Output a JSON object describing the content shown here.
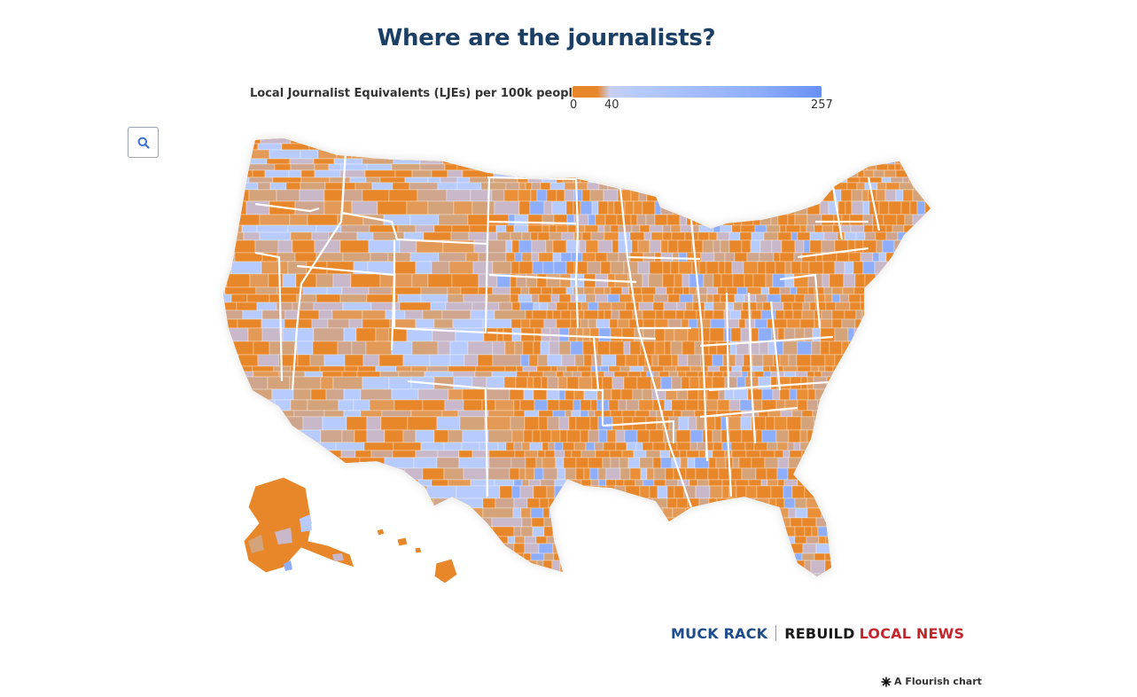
{
  "title": "Where are the journalists?",
  "legend": {
    "label": "Local Journalist Equivalents (LJEs) per 100k people",
    "ticks": [
      "0",
      "40",
      "257"
    ],
    "tick_values": [
      0,
      40,
      257
    ],
    "min": 0,
    "max": 257,
    "low_color": "#e8862a",
    "mid_color": "#b7cbff",
    "high_color": "#6890f4"
  },
  "search_button": {
    "icon": "search-icon"
  },
  "map": {
    "region": "United States counties",
    "border_color": "#ffffff",
    "base_color": "#e8862a"
  },
  "logos": {
    "muck_rack": "MUCK RACK",
    "rebuild": "REBUILD",
    "local_news": "LOCAL NEWS"
  },
  "credit": "A Flourish chart"
}
